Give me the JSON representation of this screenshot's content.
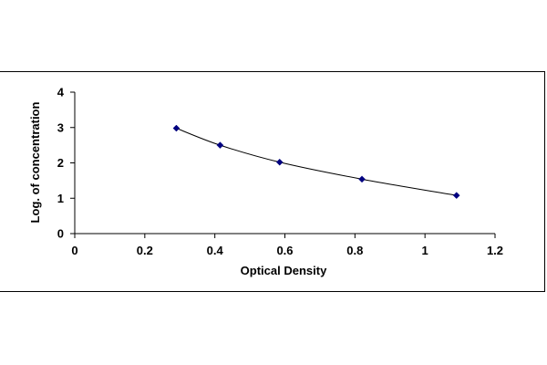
{
  "chart_data": {
    "type": "scatter",
    "title": "",
    "xlabel": "Optical Density",
    "ylabel": "Log. of concentration",
    "xlim": [
      0,
      1.2
    ],
    "ylim": [
      0,
      4
    ],
    "x_ticks": [
      "0",
      "0.2",
      "0.4",
      "0.6",
      "0.8",
      "1",
      "1.2"
    ],
    "y_ticks": [
      "0",
      "1",
      "2",
      "3",
      "4"
    ],
    "grid": false,
    "legend": "none",
    "series": [
      {
        "x": [
          0.29,
          0.415,
          0.585,
          0.82,
          1.09
        ],
        "y": [
          2.98,
          2.5,
          2.02,
          1.54,
          1.08
        ],
        "marker": "diamond",
        "color": "#000080",
        "line_color": "#000000",
        "fit_line": "smooth"
      }
    ]
  }
}
